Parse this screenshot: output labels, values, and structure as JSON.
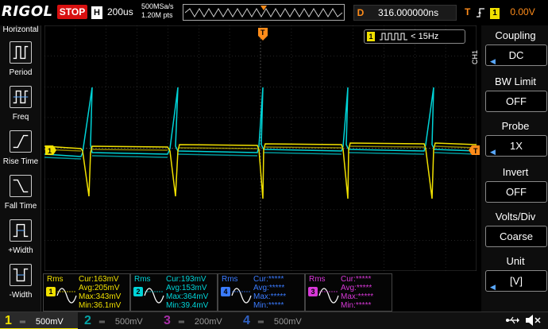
{
  "topbar": {
    "logo": "RIGOL",
    "run_state": "STOP",
    "timebase_key": "H",
    "timebase": "200us",
    "sample_rate": "500MSa/s",
    "memory_depth": "1.20M pts",
    "delay_key": "D",
    "delay": "316.000000ns",
    "trigger_key": "T",
    "trigger_edge_icon": "rising-edge-icon",
    "trigger_source": "1",
    "trigger_level": "0.00V"
  },
  "left_menu": {
    "title": "Horizontal",
    "items": [
      {
        "label": "Period",
        "icon": "period-icon"
      },
      {
        "label": "Freq",
        "icon": "frequency-icon"
      },
      {
        "label": "Rise Time",
        "icon": "rise-time-icon"
      },
      {
        "label": "Fall Time",
        "icon": "fall-time-icon"
      },
      {
        "label": "+Width",
        "icon": "positive-width-icon"
      },
      {
        "label": "-Width",
        "icon": "negative-width-icon"
      }
    ]
  },
  "frequency_counter": {
    "channel": "1",
    "value": "< 15Hz"
  },
  "right_menu": {
    "channel_tag": "CH1",
    "items": [
      {
        "title": "Coupling",
        "value": "DC"
      },
      {
        "title": "BW Limit",
        "value": "OFF"
      },
      {
        "title": "Probe",
        "value": "1X"
      },
      {
        "title": "Invert",
        "value": "OFF"
      },
      {
        "title": "Volts/Div",
        "value": "Coarse"
      },
      {
        "title": "Unit",
        "value": "[V]"
      }
    ]
  },
  "measurements": [
    {
      "title": "Rms",
      "channel": "1",
      "color": "#f0e000",
      "cur": "Cur:163mV",
      "avg": "Avg:205mV",
      "max": "Max:343mV",
      "min": "Min:36.1mV"
    },
    {
      "title": "Rms",
      "channel": "2",
      "color": "#00d4d8",
      "cur": "Cur:193mV",
      "avg": "Avg:153mV",
      "max": "Max:364mV",
      "min": "Min:39.4mV"
    },
    {
      "title": "Rms",
      "channel": "4",
      "color": "#3a7bff",
      "cur": "Cur:*****",
      "avg": "Avg:*****",
      "max": "Max:*****",
      "min": "Min:*****"
    },
    {
      "title": "Rms",
      "channel": "3",
      "color": "#d838d8",
      "cur": "Cur:*****",
      "avg": "Avg:*****",
      "max": "Max:*****",
      "min": "Min:*****"
    }
  ],
  "channel_bar": [
    {
      "num": "1",
      "scale": "500mV",
      "color": "#f0e000",
      "active": true
    },
    {
      "num": "2",
      "scale": "500mV",
      "color": "#00d4d8",
      "active": false
    },
    {
      "num": "3",
      "scale": "200mV",
      "color": "#d838d8",
      "active": false
    },
    {
      "num": "4",
      "scale": "500mV",
      "color": "#3a7bff",
      "active": false
    }
  ],
  "trace_markers": {
    "ch1_left": "1",
    "trigger_right": "T",
    "trigger_top": "T"
  },
  "colors": {
    "ch1": "#f0e000",
    "ch2": "#00d4d8",
    "ch3": "#d838d8",
    "ch4": "#3a7bff",
    "trigger": "#ff8c1a",
    "stop": "#d81010"
  }
}
